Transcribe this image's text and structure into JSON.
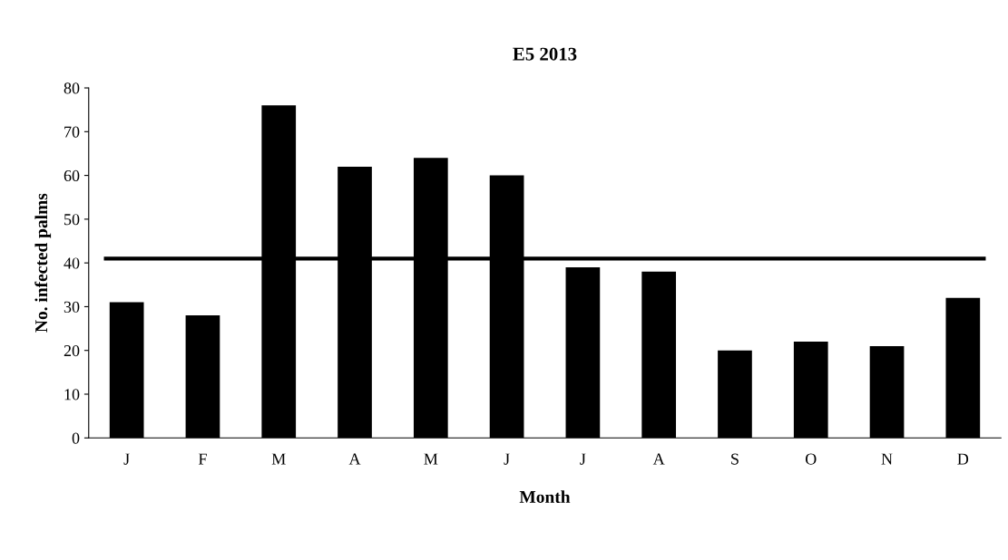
{
  "chart_data": {
    "type": "bar",
    "title": "E5 2013",
    "xlabel": "Month",
    "ylabel": "No. infected palms",
    "categories": [
      "J",
      "F",
      "M",
      "A",
      "M",
      "J",
      "J",
      "A",
      "S",
      "O",
      "N",
      "D"
    ],
    "values": [
      31,
      28,
      76,
      62,
      64,
      60,
      39,
      38,
      20,
      22,
      21,
      32
    ],
    "color": "#000000",
    "ylim": [
      0,
      80
    ],
    "yticks": [
      0,
      10,
      20,
      30,
      40,
      50,
      60,
      70,
      80
    ],
    "ref_lines": [
      {
        "axis": "y",
        "value": 41,
        "label": null,
        "color": "#000000"
      }
    ],
    "grid": false,
    "legend": false
  }
}
